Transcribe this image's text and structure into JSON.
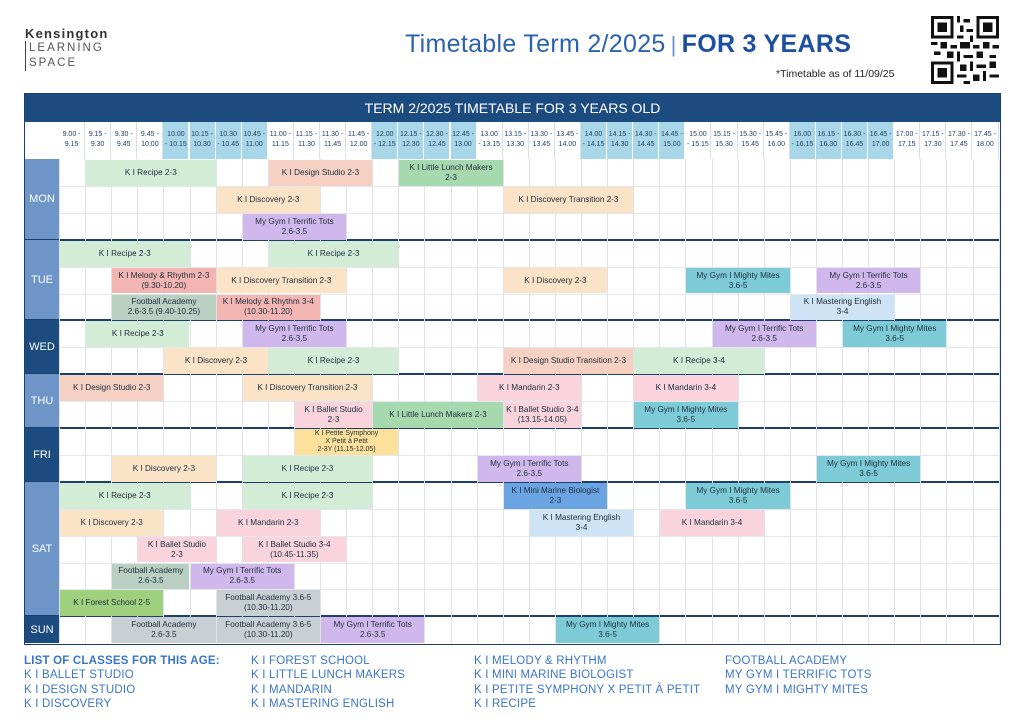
{
  "logo": {
    "line1": "Kensington",
    "line2": "LEARNING",
    "line3": "SPACE"
  },
  "header": {
    "title_main": "Timetable Term 2/2025",
    "separator": "|",
    "title_bold": "FOR 3 YEARS",
    "as_of": "*Timetable as of 11/09/25"
  },
  "table_title": "TERM 2/2025 TIMETABLE FOR 3 YEARS OLD",
  "slots": [
    {
      "l1": "9.00 -",
      "l2": "9.15",
      "shade": "w"
    },
    {
      "l1": "9.15 -",
      "l2": "9.30",
      "shade": "w"
    },
    {
      "l1": "9.30 -",
      "l2": "9.45",
      "shade": "w"
    },
    {
      "l1": "9.45 -",
      "l2": "10.00",
      "shade": "w"
    },
    {
      "l1": "10.00",
      "l2": "- 10.15",
      "shade": "b"
    },
    {
      "l1": "10.15 -",
      "l2": "10.30",
      "shade": "b"
    },
    {
      "l1": "10.30",
      "l2": "- 10.45",
      "shade": "b"
    },
    {
      "l1": "10.45 -",
      "l2": "11.00",
      "shade": "b"
    },
    {
      "l1": "11.00 -",
      "l2": "11.15",
      "shade": "w"
    },
    {
      "l1": "11.15 -",
      "l2": "11.30",
      "shade": "w"
    },
    {
      "l1": "11.30 -",
      "l2": "11.45",
      "shade": "w"
    },
    {
      "l1": "11.45 -",
      "l2": "12.00",
      "shade": "w"
    },
    {
      "l1": "12.00",
      "l2": "- 12.15",
      "shade": "b"
    },
    {
      "l1": "12.15 -",
      "l2": "12.30",
      "shade": "b"
    },
    {
      "l1": "12.30 -",
      "l2": "12.45",
      "shade": "b"
    },
    {
      "l1": "12.45 -",
      "l2": "13.00",
      "shade": "b"
    },
    {
      "l1": "13.00",
      "l2": "- 13.15",
      "shade": "w"
    },
    {
      "l1": "13.15 -",
      "l2": "13.30",
      "shade": "w"
    },
    {
      "l1": "13.30 -",
      "l2": "13.45",
      "shade": "w"
    },
    {
      "l1": "13.45 -",
      "l2": "14.00",
      "shade": "w"
    },
    {
      "l1": "14.00",
      "l2": "- 14.15",
      "shade": "b"
    },
    {
      "l1": "14.15 -",
      "l2": "14.30",
      "shade": "b"
    },
    {
      "l1": "14.30 -",
      "l2": "14.45",
      "shade": "b"
    },
    {
      "l1": "14.45 -",
      "l2": "15.00",
      "shade": "b"
    },
    {
      "l1": "15.00",
      "l2": "- 15.15",
      "shade": "w"
    },
    {
      "l1": "15.15 -",
      "l2": "15.30",
      "shade": "w"
    },
    {
      "l1": "15.30 -",
      "l2": "15.45",
      "shade": "w"
    },
    {
      "l1": "15.45 -",
      "l2": "16.00",
      "shade": "w"
    },
    {
      "l1": "16.00",
      "l2": "- 16.15",
      "shade": "b"
    },
    {
      "l1": "16.15 -",
      "l2": "16.30",
      "shade": "b"
    },
    {
      "l1": "16.30 -",
      "l2": "16.45",
      "shade": "b"
    },
    {
      "l1": "16.45 -",
      "l2": "17.00",
      "shade": "b"
    },
    {
      "l1": "17.00 -",
      "l2": "17.15",
      "shade": "w"
    },
    {
      "l1": "17.15 -",
      "l2": "17.30",
      "shade": "w"
    },
    {
      "l1": "17.30 -",
      "l2": "17.45",
      "shade": "w"
    },
    {
      "l1": "17.45 -",
      "l2": "18.00",
      "shade": "w"
    }
  ],
  "days": [
    {
      "name": "MON",
      "rows": 3,
      "dark": false
    },
    {
      "name": "TUE",
      "rows": 3,
      "dark": false
    },
    {
      "name": "WED",
      "rows": 2,
      "dark": true
    },
    {
      "name": "THU",
      "rows": 2,
      "dark": false
    },
    {
      "name": "FRI",
      "rows": 2,
      "dark": true
    },
    {
      "name": "SAT",
      "rows": 5,
      "dark": false
    },
    {
      "name": "SUN",
      "rows": 1,
      "dark": true
    }
  ],
  "events": [
    {
      "day": 0,
      "row": 0,
      "start": 1,
      "end": 6,
      "color": "green",
      "text": [
        "K I Recipe 2-3"
      ]
    },
    {
      "day": 0,
      "row": 0,
      "start": 8,
      "end": 12,
      "color": "salmon",
      "text": [
        "K I Design Studio 2-3"
      ]
    },
    {
      "day": 0,
      "row": 0,
      "start": 13,
      "end": 17,
      "color": "mgreen",
      "text": [
        "K I Little Lunch Makers",
        "2-3"
      ]
    },
    {
      "day": 0,
      "row": 1,
      "start": 6,
      "end": 10,
      "color": "peach",
      "text": [
        "K I Discovery 2-3"
      ]
    },
    {
      "day": 0,
      "row": 1,
      "start": 17,
      "end": 22,
      "color": "peach",
      "text": [
        "K I Discovery Transition 2-3"
      ]
    },
    {
      "day": 0,
      "row": 2,
      "start": 7,
      "end": 11,
      "color": "purple",
      "text": [
        "My Gym I Terrific Tots",
        "2.6-3.5"
      ]
    },
    {
      "day": 1,
      "row": 0,
      "start": 0,
      "end": 5,
      "color": "green",
      "text": [
        "K I Recipe 2-3"
      ]
    },
    {
      "day": 1,
      "row": 0,
      "start": 8,
      "end": 13,
      "color": "green",
      "text": [
        "K I Recipe 2-3"
      ]
    },
    {
      "day": 1,
      "row": 1,
      "start": 2,
      "end": 6,
      "color": "red",
      "text": [
        "K I Melody & Rhythm 2-3",
        "(9.30-10.20)"
      ]
    },
    {
      "day": 1,
      "row": 1,
      "start": 6,
      "end": 11,
      "color": "peach",
      "text": [
        "K I Discovery Transition 2-3"
      ]
    },
    {
      "day": 1,
      "row": 1,
      "start": 17,
      "end": 21,
      "color": "peach",
      "text": [
        "K I Discovery 2-3"
      ]
    },
    {
      "day": 1,
      "row": 1,
      "start": 24,
      "end": 28,
      "color": "teal",
      "text": [
        "My Gym I Mighty Mites",
        "3.6-5"
      ]
    },
    {
      "day": 1,
      "row": 1,
      "start": 29,
      "end": 33,
      "color": "purple",
      "text": [
        "My Gym I Terrific Tots",
        "2.6-3.5"
      ]
    },
    {
      "day": 1,
      "row": 2,
      "start": 2,
      "end": 6,
      "color": "sage",
      "text": [
        "Football Academy",
        "2.6-3.5 (9.40-10.25)"
      ]
    },
    {
      "day": 1,
      "row": 2,
      "start": 6,
      "end": 10,
      "color": "red",
      "text": [
        "K I Melody & Rhythm 3-4",
        "(10.30-11.20)"
      ]
    },
    {
      "day": 1,
      "row": 2,
      "start": 28,
      "end": 32,
      "color": "lblue",
      "text": [
        "K I Mastering English",
        "3-4"
      ]
    },
    {
      "day": 2,
      "row": 0,
      "start": 1,
      "end": 5,
      "color": "green",
      "text": [
        "K I Recipe 2-3"
      ]
    },
    {
      "day": 2,
      "row": 0,
      "start": 7,
      "end": 11,
      "color": "purple",
      "text": [
        "My Gym I Terrific Tots",
        "2.6-3.5"
      ]
    },
    {
      "day": 2,
      "row": 0,
      "start": 25,
      "end": 29,
      "color": "purple",
      "text": [
        "My Gym I Terrific Tots",
        "2.6-3.5"
      ]
    },
    {
      "day": 2,
      "row": 0,
      "start": 30,
      "end": 34,
      "color": "teal",
      "text": [
        "My Gym I Mighty Mites",
        "3.6-5"
      ]
    },
    {
      "day": 2,
      "row": 1,
      "start": 4,
      "end": 8,
      "color": "peach",
      "text": [
        "K I Discovery 2-3"
      ]
    },
    {
      "day": 2,
      "row": 1,
      "start": 8,
      "end": 13,
      "color": "green",
      "text": [
        "K I Recipe 2-3"
      ]
    },
    {
      "day": 2,
      "row": 1,
      "start": 17,
      "end": 22,
      "color": "salmon",
      "text": [
        "K I Design Studio Transition 2-3"
      ]
    },
    {
      "day": 2,
      "row": 1,
      "start": 22,
      "end": 27,
      "color": "green",
      "text": [
        "K I Recipe 3-4"
      ]
    },
    {
      "day": 3,
      "row": 0,
      "start": 0,
      "end": 4,
      "color": "salmon",
      "text": [
        "K I Design Studio 2-3"
      ]
    },
    {
      "day": 3,
      "row": 0,
      "start": 7,
      "end": 12,
      "color": "peach",
      "text": [
        "K I Discovery Transition 2-3"
      ]
    },
    {
      "day": 3,
      "row": 0,
      "start": 16,
      "end": 20,
      "color": "pink",
      "text": [
        "K I Mandarin 2-3"
      ]
    },
    {
      "day": 3,
      "row": 0,
      "start": 22,
      "end": 26,
      "color": "pink",
      "text": [
        "K I Mandarin 3-4"
      ]
    },
    {
      "day": 3,
      "row": 1,
      "start": 9,
      "end": 12,
      "color": "pink",
      "text": [
        "K I Ballet Studio",
        "2-3"
      ]
    },
    {
      "day": 3,
      "row": 1,
      "start": 12,
      "end": 17,
      "color": "mgreen",
      "text": [
        "K I Little Lunch Makers 2-3"
      ]
    },
    {
      "day": 3,
      "row": 1,
      "start": 17,
      "end": 20,
      "color": "pink",
      "text": [
        "K I Ballet Studio 3-4",
        "(13.15-14.05)"
      ]
    },
    {
      "day": 3,
      "row": 1,
      "start": 22,
      "end": 26,
      "color": "teal",
      "text": [
        "My Gym I Mighty Mites",
        "3.6-5"
      ]
    },
    {
      "day": 4,
      "row": 0,
      "start": 9,
      "end": 13,
      "color": "yellow",
      "text": [
        "K I Petite Symphony",
        "X Petit à Petit",
        "2-3Y (11.15-12.05)"
      ]
    },
    {
      "day": 4,
      "row": 1,
      "start": 2,
      "end": 6,
      "color": "peach",
      "text": [
        "K I Discovery 2-3"
      ]
    },
    {
      "day": 4,
      "row": 1,
      "start": 7,
      "end": 12,
      "color": "green",
      "text": [
        "K I Recipe 2-3"
      ]
    },
    {
      "day": 4,
      "row": 1,
      "start": 16,
      "end": 20,
      "color": "purple",
      "text": [
        "My Gym I Terrific Tots",
        "2.6-3.5"
      ]
    },
    {
      "day": 4,
      "row": 1,
      "start": 29,
      "end": 33,
      "color": "teal",
      "text": [
        "My Gym I Mighty Mites",
        "3.6-5"
      ]
    },
    {
      "day": 5,
      "row": 0,
      "start": 0,
      "end": 5,
      "color": "green",
      "text": [
        "K I Recipe 2-3"
      ]
    },
    {
      "day": 5,
      "row": 0,
      "start": 7,
      "end": 12,
      "color": "green",
      "text": [
        "K I Recipe 2-3"
      ]
    },
    {
      "day": 5,
      "row": 0,
      "start": 17,
      "end": 21,
      "color": "blue",
      "text": [
        "K I Mini Marine Biologist",
        "2-3"
      ]
    },
    {
      "day": 5,
      "row": 0,
      "start": 24,
      "end": 28,
      "color": "teal",
      "text": [
        "My Gym I Mighty Mites",
        "3.6-5"
      ]
    },
    {
      "day": 5,
      "row": 1,
      "start": 0,
      "end": 4,
      "color": "peach",
      "text": [
        "K I Discovery 2-3"
      ]
    },
    {
      "day": 5,
      "row": 1,
      "start": 6,
      "end": 10,
      "color": "pink",
      "text": [
        "K I Mandarin 2-3"
      ]
    },
    {
      "day": 5,
      "row": 1,
      "start": 18,
      "end": 22,
      "color": "lblue",
      "text": [
        "K I Mastering English",
        "3-4"
      ]
    },
    {
      "day": 5,
      "row": 1,
      "start": 23,
      "end": 27,
      "color": "pink",
      "text": [
        "K I Mandarin 3-4"
      ]
    },
    {
      "day": 5,
      "row": 2,
      "start": 3,
      "end": 6,
      "color": "pink",
      "text": [
        "K I Ballet Studio",
        "2-3"
      ]
    },
    {
      "day": 5,
      "row": 2,
      "start": 7,
      "end": 11,
      "color": "pink",
      "text": [
        "K I Ballet Studio 3-4",
        "(10.45-11.35)"
      ]
    },
    {
      "day": 5,
      "row": 3,
      "start": 2,
      "end": 5,
      "color": "sage",
      "text": [
        "Football Academy",
        "2.6-3.5"
      ]
    },
    {
      "day": 5,
      "row": 3,
      "start": 5,
      "end": 9,
      "color": "purple",
      "text": [
        "My Gym I Terrific Tots",
        "2.6-3.5"
      ]
    },
    {
      "day": 5,
      "row": 4,
      "start": 0,
      "end": 4,
      "color": "lime",
      "text": [
        "K I Forest School 2-5"
      ]
    },
    {
      "day": 5,
      "row": 4,
      "start": 6,
      "end": 10,
      "color": "gray",
      "text": [
        "Football Academy 3.6-5",
        "(10.30-11.20)"
      ]
    },
    {
      "day": 6,
      "row": 0,
      "start": 2,
      "end": 6,
      "color": "gray",
      "text": [
        "Football Academy",
        "2.6-3.5"
      ]
    },
    {
      "day": 6,
      "row": 0,
      "start": 6,
      "end": 10,
      "color": "gray",
      "text": [
        "Football Academy 3.6-5",
        "(10.30-11.20)"
      ]
    },
    {
      "day": 6,
      "row": 0,
      "start": 10,
      "end": 14,
      "color": "purple",
      "text": [
        "My Gym I Terrific Tots",
        "2.6-3.5"
      ]
    },
    {
      "day": 6,
      "row": 0,
      "start": 19,
      "end": 23,
      "color": "teal",
      "text": [
        "My Gym I Mighty Mites",
        "3.6-5"
      ]
    }
  ],
  "classes": {
    "heading": "LIST OF CLASSES FOR THIS AGE:",
    "col1": [
      "K I BALLET STUDIO",
      "K I DESIGN STUDIO",
      "K I DISCOVERY"
    ],
    "col2": [
      "K I FOREST SCHOOL",
      "K I LITTLE LUNCH MAKERS",
      "K I MANDARIN",
      "K I MASTERING ENGLISH"
    ],
    "col3": [
      "K I MELODY & RHYTHM",
      "K I MINI MARINE BIOLOGIST",
      "K I PETITE SYMPHONY X PETIT À PETIT",
      "K I RECIPE"
    ],
    "col4": [
      "FOOTBALL ACADEMY",
      "MY GYM I TERRIFIC TOTS",
      "MY GYM I MIGHTY MITES"
    ]
  }
}
